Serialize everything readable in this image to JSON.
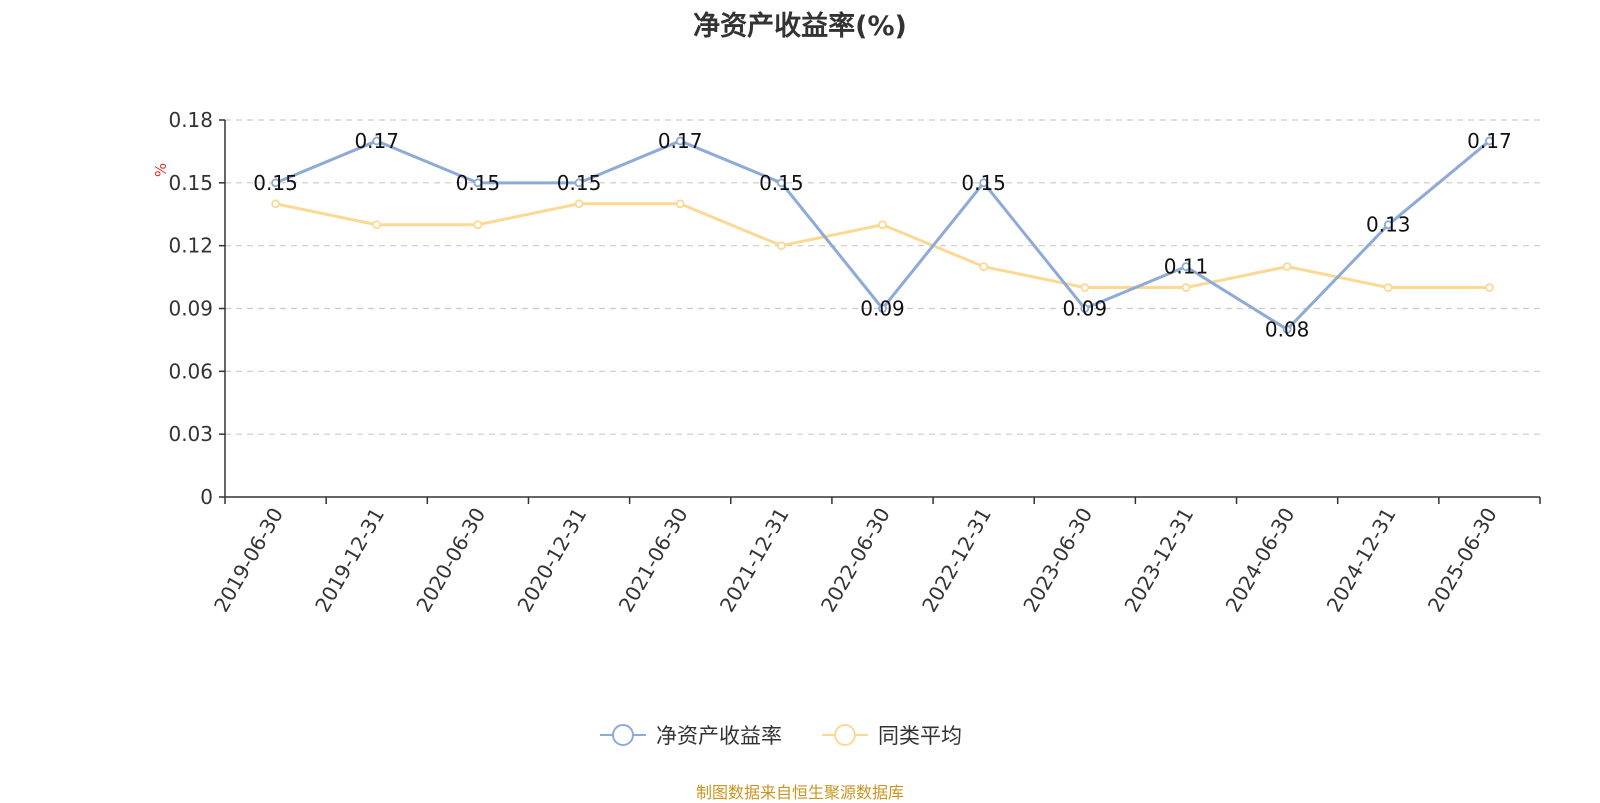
{
  "chart_data": {
    "type": "line",
    "title": "净资产收益率(%)",
    "ylabel": "%",
    "xlabel": "",
    "categories": [
      "2019-06-30",
      "2019-12-31",
      "2020-06-30",
      "2020-12-31",
      "2021-06-30",
      "2021-12-31",
      "2022-06-30",
      "2022-12-31",
      "2023-06-30",
      "2023-12-31",
      "2024-06-30",
      "2024-12-31",
      "2025-06-30"
    ],
    "yticks": [
      0,
      0.03,
      0.06,
      0.09,
      0.12,
      0.15,
      0.18
    ],
    "ytick_labels": [
      "0",
      "0.03",
      "0.06",
      "0.09",
      "0.12",
      "0.15",
      "0.18"
    ],
    "ylim": [
      0,
      0.18
    ],
    "grid": true,
    "legend_position": "bottom-center",
    "series": [
      {
        "name": "净资产收益率",
        "color": "#8eaad6",
        "values": [
          0.15,
          0.17,
          0.15,
          0.15,
          0.17,
          0.15,
          0.09,
          0.15,
          0.09,
          0.11,
          0.08,
          0.13,
          0.17
        ],
        "labels": [
          "0.15",
          "0.17",
          "0.15",
          "0.15",
          "0.17",
          "0.15",
          "0.09",
          "0.15",
          "0.09",
          "0.11",
          "0.08",
          "0.13",
          "0.17"
        ]
      },
      {
        "name": "同类平均",
        "color": "#fbd994",
        "values": [
          0.14,
          0.13,
          0.13,
          0.14,
          0.14,
          0.12,
          0.13,
          0.11,
          0.1,
          0.1,
          0.11,
          0.1,
          0.1
        ]
      }
    ]
  },
  "source": "制图数据来自恒生聚源数据库"
}
